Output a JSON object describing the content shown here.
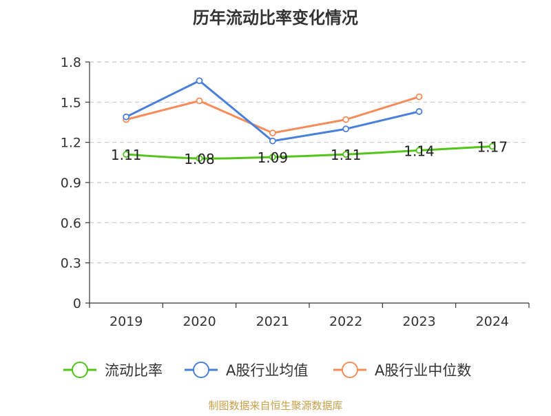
{
  "chart_data": {
    "type": "line",
    "title": "历年流动比率变化情况",
    "categories": [
      "2019",
      "2020",
      "2021",
      "2022",
      "2023",
      "2024"
    ],
    "ylim": [
      0,
      1.8
    ],
    "yticks": [
      "0",
      "0.3",
      "0.6",
      "0.9",
      "1.2",
      "1.5",
      "1.8"
    ],
    "grid": true,
    "legend_position": "bottom",
    "series": [
      {
        "name": "流动比率",
        "color": "#52c41a",
        "values": [
          1.11,
          1.08,
          1.09,
          1.11,
          1.14,
          1.17
        ],
        "labels": [
          "1.11",
          "1.08",
          "1.09",
          "1.11",
          "1.14",
          "1.17"
        ]
      },
      {
        "name": "A股行业均值",
        "color": "#4a7fdc",
        "values": [
          1.39,
          1.66,
          1.21,
          1.3,
          1.43,
          null
        ]
      },
      {
        "name": "A股行业中位数",
        "color": "#f78b5a",
        "values": [
          1.37,
          1.51,
          1.27,
          1.37,
          1.54,
          null
        ]
      }
    ]
  },
  "footer": {
    "source": "制图数据来自恒生聚源数据库"
  }
}
